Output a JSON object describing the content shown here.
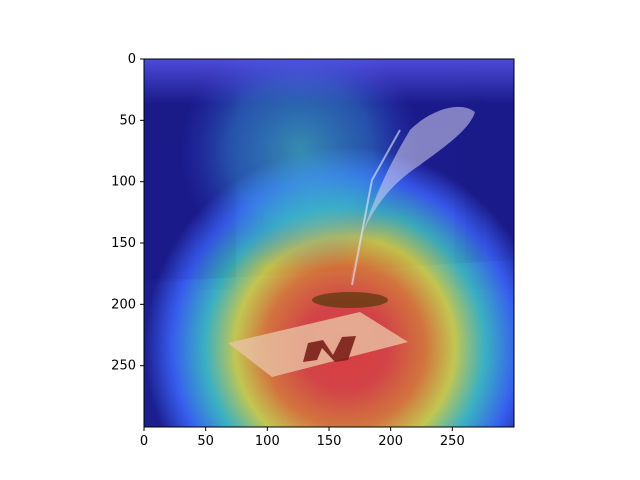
{
  "chart_data": {
    "type": "heatmap",
    "title": "",
    "xlabel": "",
    "ylabel": "",
    "xlim": [
      0,
      300
    ],
    "ylim": [
      300,
      0
    ],
    "x_ticks": [
      0,
      50,
      100,
      150,
      200,
      250
    ],
    "y_ticks": [
      0,
      50,
      100,
      150,
      200,
      250
    ],
    "x_tick_labels": [
      "0",
      "50",
      "100",
      "150",
      "200",
      "250"
    ],
    "y_tick_labels": [
      "0",
      "50",
      "100",
      "150",
      "200",
      "250"
    ],
    "grid": false,
    "colormap": "jet",
    "overlay_description_hidden": true,
    "hotspot_center": [
      165,
      235
    ]
  },
  "colors": {
    "axis": "#000000",
    "background": "#ffffff",
    "cold": "#1b1a8c",
    "cool": "#3a62ff",
    "mid": "#3fd1c8",
    "warm": "#e8e43a",
    "hot": "#f07a2a",
    "hottest": "#e23c3c"
  }
}
